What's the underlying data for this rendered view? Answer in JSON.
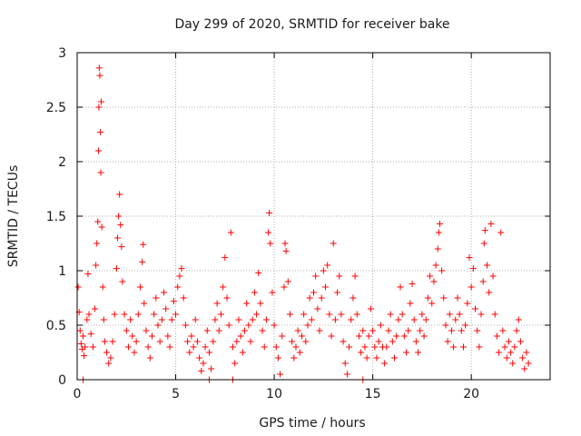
{
  "chart_data": {
    "type": "scatter",
    "title": "Day 299 of 2020, SRMTID for receiver bake",
    "xlabel": "GPS time / hours",
    "ylabel": "SRMTID / TECUs",
    "xlim": [
      0,
      24
    ],
    "ylim": [
      0,
      3
    ],
    "xticks": [
      0,
      5,
      10,
      15,
      20
    ],
    "xtick_labels": [
      "0",
      "5",
      "10",
      "15",
      "20"
    ],
    "yticks": [
      0,
      0.5,
      1,
      1.5,
      2,
      2.5,
      3
    ],
    "ytick_labels": [
      "0",
      "0.5",
      "1",
      "1.5",
      "2",
      "2.5",
      "3"
    ],
    "grid": true,
    "marker": "+",
    "color": "#ff0000",
    "series": [
      {
        "name": "SRMTID",
        "points": [
          [
            0.05,
            0.85
          ],
          [
            0.1,
            0.62
          ],
          [
            0.15,
            0.45
          ],
          [
            0.2,
            0.33
          ],
          [
            0.25,
            0.28
          ],
          [
            0.3,
            0.4
          ],
          [
            0.35,
            0.22
          ],
          [
            0.4,
            0.3
          ],
          [
            0.5,
            0.55
          ],
          [
            0.55,
            0.97
          ],
          [
            0.6,
            0.6
          ],
          [
            0.7,
            0.42
          ],
          [
            0.8,
            0.3
          ],
          [
            0.9,
            0.65
          ],
          [
            0.95,
            1.05
          ],
          [
            1.0,
            1.25
          ],
          [
            1.05,
            1.45
          ],
          [
            1.08,
            2.1
          ],
          [
            1.1,
            2.5
          ],
          [
            1.12,
            2.86
          ],
          [
            1.15,
            2.79
          ],
          [
            1.18,
            2.27
          ],
          [
            1.2,
            1.9
          ],
          [
            1.22,
            2.55
          ],
          [
            1.25,
            1.4
          ],
          [
            1.3,
            0.85
          ],
          [
            1.35,
            0.55
          ],
          [
            1.4,
            0.35
          ],
          [
            1.5,
            0.25
          ],
          [
            1.6,
            0.15
          ],
          [
            1.7,
            0.2
          ],
          [
            1.8,
            0.35
          ],
          [
            1.9,
            0.6
          ],
          [
            2.0,
            1.02
          ],
          [
            2.05,
            1.3
          ],
          [
            2.1,
            1.5
          ],
          [
            2.15,
            1.7
          ],
          [
            2.2,
            1.42
          ],
          [
            2.25,
            1.22
          ],
          [
            2.3,
            0.9
          ],
          [
            2.4,
            0.6
          ],
          [
            2.5,
            0.45
          ],
          [
            2.6,
            0.3
          ],
          [
            2.7,
            0.55
          ],
          [
            2.8,
            0.4
          ],
          [
            2.9,
            0.25
          ],
          [
            3.0,
            0.35
          ],
          [
            3.1,
            0.6
          ],
          [
            3.2,
            0.85
          ],
          [
            3.3,
            1.08
          ],
          [
            3.35,
            1.24
          ],
          [
            3.4,
            0.7
          ],
          [
            3.5,
            0.45
          ],
          [
            3.6,
            0.3
          ],
          [
            3.7,
            0.2
          ],
          [
            3.8,
            0.4
          ],
          [
            3.9,
            0.6
          ],
          [
            4.0,
            0.75
          ],
          [
            4.1,
            0.5
          ],
          [
            4.2,
            0.35
          ],
          [
            4.3,
            0.55
          ],
          [
            4.4,
            0.8
          ],
          [
            4.5,
            0.65
          ],
          [
            4.6,
            0.4
          ],
          [
            4.7,
            0.3
          ],
          [
            4.8,
            0.55
          ],
          [
            4.9,
            0.72
          ],
          [
            5.0,
            0.6
          ],
          [
            5.1,
            0.85
          ],
          [
            5.2,
            0.95
          ],
          [
            5.3,
            1.02
          ],
          [
            5.4,
            0.75
          ],
          [
            5.5,
            0.5
          ],
          [
            5.6,
            0.35
          ],
          [
            5.7,
            0.25
          ],
          [
            5.8,
            0.4
          ],
          [
            5.9,
            0.3
          ],
          [
            6.0,
            0.55
          ],
          [
            6.1,
            0.35
          ],
          [
            6.2,
            0.2
          ],
          [
            6.3,
            0.08
          ],
          [
            6.4,
            0.15
          ],
          [
            6.5,
            0.3
          ],
          [
            6.6,
            0.45
          ],
          [
            6.7,
            0.25
          ],
          [
            6.8,
            0.1
          ],
          [
            6.9,
            0.35
          ],
          [
            7.0,
            0.55
          ],
          [
            7.1,
            0.7
          ],
          [
            7.2,
            0.45
          ],
          [
            7.3,
            0.6
          ],
          [
            7.4,
            0.85
          ],
          [
            7.5,
            1.12
          ],
          [
            7.6,
            0.75
          ],
          [
            7.7,
            0.5
          ],
          [
            7.8,
            1.35
          ],
          [
            7.9,
            0.3
          ],
          [
            8.0,
            0.15
          ],
          [
            8.1,
            0.35
          ],
          [
            8.2,
            0.55
          ],
          [
            8.3,
            0.4
          ],
          [
            8.4,
            0.25
          ],
          [
            8.5,
            0.45
          ],
          [
            8.6,
            0.7
          ],
          [
            8.7,
            0.5
          ],
          [
            8.8,
            0.35
          ],
          [
            8.9,
            0.55
          ],
          [
            9.0,
            0.8
          ],
          [
            9.1,
            0.6
          ],
          [
            9.2,
            0.98
          ],
          [
            9.3,
            0.7
          ],
          [
            9.4,
            0.45
          ],
          [
            9.5,
            0.3
          ],
          [
            9.6,
            0.55
          ],
          [
            9.7,
            1.35
          ],
          [
            9.75,
            1.53
          ],
          [
            9.8,
            1.25
          ],
          [
            9.9,
            0.8
          ],
          [
            10.0,
            0.5
          ],
          [
            10.1,
            0.3
          ],
          [
            10.2,
            0.2
          ],
          [
            10.3,
            0.05
          ],
          [
            10.4,
            0.4
          ],
          [
            10.5,
            0.85
          ],
          [
            10.55,
            1.25
          ],
          [
            10.6,
            1.18
          ],
          [
            10.7,
            0.9
          ],
          [
            10.8,
            0.6
          ],
          [
            10.9,
            0.35
          ],
          [
            11.0,
            0.2
          ],
          [
            11.1,
            0.3
          ],
          [
            11.2,
            0.45
          ],
          [
            11.3,
            0.25
          ],
          [
            11.4,
            0.4
          ],
          [
            11.5,
            0.6
          ],
          [
            11.6,
            0.35
          ],
          [
            11.7,
            0.5
          ],
          [
            11.8,
            0.75
          ],
          [
            11.9,
            0.55
          ],
          [
            12.0,
            0.8
          ],
          [
            12.1,
            0.95
          ],
          [
            12.2,
            0.65
          ],
          [
            12.3,
            0.45
          ],
          [
            12.4,
            0.75
          ],
          [
            12.5,
            1.0
          ],
          [
            12.6,
            0.85
          ],
          [
            12.7,
            1.05
          ],
          [
            12.8,
            0.6
          ],
          [
            12.9,
            0.4
          ],
          [
            13.0,
            1.25
          ],
          [
            13.1,
            0.55
          ],
          [
            13.2,
            0.8
          ],
          [
            13.3,
            0.95
          ],
          [
            13.4,
            0.6
          ],
          [
            13.5,
            0.35
          ],
          [
            13.6,
            0.15
          ],
          [
            13.7,
            0.05
          ],
          [
            13.8,
            0.3
          ],
          [
            13.9,
            0.55
          ],
          [
            14.0,
            0.75
          ],
          [
            14.1,
            0.95
          ],
          [
            14.2,
            0.6
          ],
          [
            14.3,
            0.4
          ],
          [
            14.4,
            0.25
          ],
          [
            14.5,
            0.45
          ],
          [
            14.6,
            0.3
          ],
          [
            14.7,
            0.2
          ],
          [
            14.8,
            0.4
          ],
          [
            14.9,
            0.65
          ],
          [
            15.0,
            0.45
          ],
          [
            15.1,
            0.3
          ],
          [
            15.2,
            0.2
          ],
          [
            15.3,
            0.35
          ],
          [
            15.4,
            0.5
          ],
          [
            15.5,
            0.3
          ],
          [
            15.6,
            0.15
          ],
          [
            15.7,
            0.3
          ],
          [
            15.8,
            0.45
          ],
          [
            15.9,
            0.6
          ],
          [
            16.0,
            0.35
          ],
          [
            16.1,
            0.2
          ],
          [
            16.2,
            0.4
          ],
          [
            16.3,
            0.55
          ],
          [
            16.4,
            0.85
          ],
          [
            16.5,
            0.6
          ],
          [
            16.6,
            0.4
          ],
          [
            16.7,
            0.25
          ],
          [
            16.8,
            0.45
          ],
          [
            16.9,
            0.7
          ],
          [
            17.0,
            0.88
          ],
          [
            17.1,
            0.55
          ],
          [
            17.2,
            0.35
          ],
          [
            17.3,
            0.25
          ],
          [
            17.4,
            0.45
          ],
          [
            17.5,
            0.6
          ],
          [
            17.6,
            0.4
          ],
          [
            17.7,
            0.55
          ],
          [
            17.8,
            0.75
          ],
          [
            17.9,
            0.95
          ],
          [
            18.0,
            0.7
          ],
          [
            18.1,
            0.9
          ],
          [
            18.2,
            1.05
          ],
          [
            18.3,
            1.2
          ],
          [
            18.35,
            1.35
          ],
          [
            18.4,
            1.43
          ],
          [
            18.5,
            1.0
          ],
          [
            18.6,
            0.75
          ],
          [
            18.7,
            0.5
          ],
          [
            18.8,
            0.35
          ],
          [
            18.9,
            0.6
          ],
          [
            19.0,
            0.45
          ],
          [
            19.1,
            0.3
          ],
          [
            19.2,
            0.55
          ],
          [
            19.3,
            0.75
          ],
          [
            19.4,
            0.6
          ],
          [
            19.5,
            0.45
          ],
          [
            19.6,
            0.3
          ],
          [
            19.7,
            0.5
          ],
          [
            19.8,
            0.7
          ],
          [
            19.9,
            1.12
          ],
          [
            20.0,
            0.85
          ],
          [
            20.1,
            1.02
          ],
          [
            20.2,
            0.65
          ],
          [
            20.3,
            0.45
          ],
          [
            20.4,
            0.3
          ],
          [
            20.5,
            0.6
          ],
          [
            20.6,
            0.9
          ],
          [
            20.65,
            1.25
          ],
          [
            20.7,
            1.37
          ],
          [
            20.8,
            1.05
          ],
          [
            20.9,
            0.8
          ],
          [
            21.0,
            1.43
          ],
          [
            21.1,
            0.95
          ],
          [
            21.2,
            0.6
          ],
          [
            21.3,
            0.4
          ],
          [
            21.4,
            0.25
          ],
          [
            21.5,
            1.35
          ],
          [
            21.6,
            0.45
          ],
          [
            21.7,
            0.3
          ],
          [
            21.8,
            0.2
          ],
          [
            21.9,
            0.35
          ],
          [
            22.0,
            0.25
          ],
          [
            22.1,
            0.15
          ],
          [
            22.2,
            0.3
          ],
          [
            22.3,
            0.45
          ],
          [
            22.4,
            0.55
          ],
          [
            22.5,
            0.35
          ],
          [
            22.6,
            0.2
          ],
          [
            22.7,
            0.1
          ],
          [
            22.8,
            0.25
          ],
          [
            22.9,
            0.15
          ],
          [
            0.3,
            0.0
          ],
          [
            6.7,
            0.0
          ],
          [
            7.9,
            0.0
          ],
          [
            14.5,
            0.0
          ]
        ]
      }
    ]
  }
}
